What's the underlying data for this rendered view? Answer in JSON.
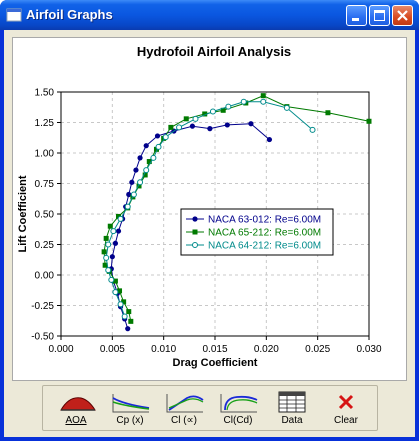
{
  "window": {
    "title": "Airfoil Graphs",
    "accent": "#0a57e0",
    "controls": [
      "minimize-icon",
      "maximize-icon",
      "close-icon"
    ]
  },
  "chart_data": {
    "type": "line",
    "title": "Hydrofoil Airfoil Analysis",
    "xlabel": "Drag Coefficient",
    "ylabel": "Lift Coefficient",
    "xlim": [
      0,
      0.03
    ],
    "ylim": [
      -0.5,
      1.5
    ],
    "xticks": [
      "0.000",
      "0.005",
      "0.010",
      "0.015",
      "0.020",
      "0.025",
      "0.030"
    ],
    "yticks": [
      "-0.50",
      "-0.25",
      "0.00",
      "0.25",
      "0.50",
      "0.75",
      "1.00",
      "1.25",
      "1.50"
    ],
    "xtick_values": [
      0,
      0.005,
      0.01,
      0.015,
      0.02,
      0.025,
      0.03
    ],
    "ytick_values": [
      -0.5,
      -0.25,
      0,
      0.25,
      0.5,
      0.75,
      1.0,
      1.25,
      1.5
    ],
    "grid": true,
    "legend_position": "center-right",
    "series": [
      {
        "name": "NACA 63-012: Re=6.00M",
        "color": "#00008b",
        "marker": "circle-filled",
        "points": [
          [
            0.0065,
            -0.44
          ],
          [
            0.0062,
            -0.36
          ],
          [
            0.0058,
            -0.26
          ],
          [
            0.0055,
            -0.15
          ],
          [
            0.0051,
            -0.05
          ],
          [
            0.0049,
            0.05
          ],
          [
            0.005,
            0.15
          ],
          [
            0.0053,
            0.26
          ],
          [
            0.0056,
            0.36
          ],
          [
            0.006,
            0.46
          ],
          [
            0.0063,
            0.56
          ],
          [
            0.0066,
            0.66
          ],
          [
            0.0069,
            0.76
          ],
          [
            0.0073,
            0.86
          ],
          [
            0.0077,
            0.96
          ],
          [
            0.0083,
            1.06
          ],
          [
            0.0094,
            1.14
          ],
          [
            0.011,
            1.18
          ],
          [
            0.0128,
            1.22
          ],
          [
            0.0145,
            1.2
          ],
          [
            0.0162,
            1.23
          ],
          [
            0.0185,
            1.24
          ],
          [
            0.0203,
            1.11
          ]
        ]
      },
      {
        "name": "NACA 65-212: Re=6.00M",
        "color": "#007a00",
        "marker": "square-filled",
        "points": [
          [
            0.0068,
            -0.38
          ],
          [
            0.0066,
            -0.3
          ],
          [
            0.0061,
            -0.22
          ],
          [
            0.0057,
            -0.13
          ],
          [
            0.0053,
            -0.05
          ],
          [
            0.0047,
            0.03
          ],
          [
            0.0043,
            0.08
          ],
          [
            0.0042,
            0.19
          ],
          [
            0.0044,
            0.3
          ],
          [
            0.0048,
            0.4
          ],
          [
            0.0056,
            0.48
          ],
          [
            0.0065,
            0.55
          ],
          [
            0.007,
            0.64
          ],
          [
            0.0076,
            0.73
          ],
          [
            0.0082,
            0.82
          ],
          [
            0.0086,
            0.93
          ],
          [
            0.0093,
            1.03
          ],
          [
            0.01,
            1.12
          ],
          [
            0.0107,
            1.21
          ],
          [
            0.0122,
            1.28
          ],
          [
            0.014,
            1.32
          ],
          [
            0.0158,
            1.35
          ],
          [
            0.018,
            1.41
          ],
          [
            0.0197,
            1.47
          ],
          [
            0.022,
            1.38
          ],
          [
            0.026,
            1.33
          ],
          [
            0.03,
            1.26
          ]
        ]
      },
      {
        "name": "NACA 64-212: Re=6.00M",
        "color": "#008b8b",
        "marker": "circle-open",
        "points": [
          [
            0.0062,
            -0.34
          ],
          [
            0.0058,
            -0.24
          ],
          [
            0.0053,
            -0.14
          ],
          [
            0.0049,
            -0.04
          ],
          [
            0.0046,
            0.04
          ],
          [
            0.0044,
            0.14
          ],
          [
            0.0046,
            0.25
          ],
          [
            0.0051,
            0.36
          ],
          [
            0.0058,
            0.46
          ],
          [
            0.0065,
            0.56
          ],
          [
            0.0071,
            0.66
          ],
          [
            0.0077,
            0.76
          ],
          [
            0.0083,
            0.86
          ],
          [
            0.009,
            0.96
          ],
          [
            0.0095,
            1.05
          ],
          [
            0.0102,
            1.13
          ],
          [
            0.0115,
            1.21
          ],
          [
            0.0131,
            1.28
          ],
          [
            0.0148,
            1.34
          ],
          [
            0.0163,
            1.38
          ],
          [
            0.0178,
            1.42
          ],
          [
            0.0197,
            1.42
          ],
          [
            0.022,
            1.37
          ],
          [
            0.0245,
            1.19
          ]
        ]
      }
    ]
  },
  "toolbar": {
    "buttons": [
      {
        "label": "AOA",
        "icon": "aoa-airfoil-icon"
      },
      {
        "label": "Cp (x)",
        "icon": "cp-curve-icon"
      },
      {
        "label": "Cl (∝)",
        "icon": "cl-alpha-curve-icon"
      },
      {
        "label": "Cl(Cd)",
        "icon": "cl-cd-curve-icon"
      },
      {
        "label": "Data",
        "icon": "data-table-icon"
      },
      {
        "label": "Clear",
        "icon": "clear-x-icon"
      }
    ]
  }
}
